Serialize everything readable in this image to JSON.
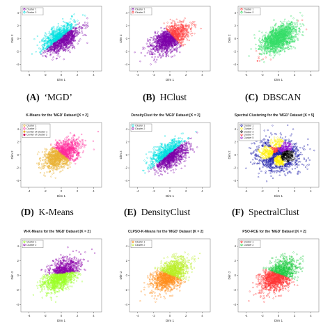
{
  "panels": [
    {
      "id": "A",
      "title": "",
      "caption_label": "(A)",
      "caption_text": "‘MGD’",
      "chart_data": {
        "type": "scatter",
        "xlabel": "Dim 1",
        "ylabel": "Dim 2",
        "xlim": [
          -5,
          5
        ],
        "ylim": [
          -5,
          5
        ],
        "xticks": [
          -4,
          -2,
          0,
          2,
          4
        ],
        "yticks": [
          -4,
          -2,
          0,
          2,
          4
        ],
        "legend_position": "top-left",
        "series": [
          {
            "name": "Cluster 1",
            "color": "#7b00a8"
          },
          {
            "name": "Cluster 2",
            "color": "#00e0e0"
          }
        ]
      }
    },
    {
      "id": "B",
      "title": "",
      "caption_label": "(B)",
      "caption_text": "HClust",
      "chart_data": {
        "type": "scatter",
        "xlabel": "Dim 1",
        "ylabel": "Dim 2",
        "xlim": [
          -5,
          5
        ],
        "ylim": [
          -5,
          5
        ],
        "xticks": [
          -4,
          -2,
          0,
          2,
          4
        ],
        "yticks": [
          -4,
          -2,
          0,
          2,
          4
        ],
        "legend_position": "top-left",
        "series": [
          {
            "name": "Cluster 1",
            "color": "#7b00a8"
          },
          {
            "name": "Cluster 2",
            "color": "#ff4040"
          }
        ]
      }
    },
    {
      "id": "C",
      "title": "",
      "caption_label": "(C)",
      "caption_text": "DBSCAN",
      "chart_data": {
        "type": "scatter",
        "xlabel": "Dim 1",
        "ylabel": "Dim 2",
        "xlim": [
          -5,
          5
        ],
        "ylim": [
          -5,
          5
        ],
        "xticks": [
          -4,
          -2,
          0,
          2,
          4
        ],
        "yticks": [
          -4,
          -2,
          0,
          2,
          4
        ],
        "legend_position": "top-left",
        "series": [
          {
            "name": "Cluster 1",
            "color": "#ff3a3a"
          },
          {
            "name": "Cluster 2",
            "color": "#33dd66"
          }
        ]
      }
    },
    {
      "id": "D",
      "title": "K-Means for the 'MGD' Dataset [K = 2]",
      "caption_label": "(D)",
      "caption_text": "K-Means",
      "chart_data": {
        "type": "scatter",
        "xlabel": "Dim 1",
        "ylabel": "Dim 2",
        "xlim": [
          -5,
          5
        ],
        "ylim": [
          -5,
          5
        ],
        "xticks": [
          -4,
          -2,
          0,
          2,
          4
        ],
        "yticks": [
          -4,
          -2,
          0,
          2,
          4
        ],
        "legend_position": "top-left",
        "series": [
          {
            "name": "Cluster 1",
            "color": "#e8b030"
          },
          {
            "name": "Cluster 2",
            "color": "#ff2a9a"
          },
          {
            "name": "Center of Cluster 1",
            "color": "#e8b030"
          },
          {
            "name": "Center of Cluster 2",
            "color": "#cc0055"
          }
        ]
      }
    },
    {
      "id": "E",
      "title": "DensityClust for the 'MGD' Dataset [K = 2]",
      "caption_label": "(E)",
      "caption_text": "DensityClust",
      "chart_data": {
        "type": "scatter",
        "xlabel": "Dim 1",
        "ylabel": "Dim 2",
        "xlim": [
          -5,
          5
        ],
        "ylim": [
          -5,
          5
        ],
        "xticks": [
          -4,
          -2,
          0,
          2,
          4
        ],
        "yticks": [
          -4,
          -2,
          0,
          2,
          4
        ],
        "legend_position": "top-left",
        "series": [
          {
            "name": "Cluster 1",
            "color": "#00e0e0"
          },
          {
            "name": "Cluster 2",
            "color": "#7b00a8"
          }
        ]
      }
    },
    {
      "id": "F",
      "title": "Spectral Clustering for the 'MGD' Dataset [K = 5]",
      "caption_label": "(F)",
      "caption_text": "SpectralClust",
      "chart_data": {
        "type": "scatter",
        "xlabel": "Dim 1",
        "ylabel": "Dim 2",
        "xlim": [
          -5,
          5
        ],
        "ylim": [
          -5,
          5
        ],
        "xticks": [
          -4,
          -2,
          0,
          2,
          4
        ],
        "yticks": [
          -4,
          -2,
          0,
          2,
          4
        ],
        "legend_position": "top-left",
        "series": [
          {
            "name": "Cluster 1",
            "color": "#1a1aa8"
          },
          {
            "name": "Cluster 2",
            "color": "#ffee00"
          },
          {
            "name": "Cluster 3",
            "color": "#000000"
          },
          {
            "name": "Cluster 4",
            "color": "#ff3333"
          },
          {
            "name": "Cluster 5",
            "color": "#8800cc"
          }
        ]
      }
    },
    {
      "id": "G",
      "title": "W-K-Means for the 'MGD' Dataset [K = 2]",
      "caption_label": "",
      "caption_text": "",
      "chart_data": {
        "type": "scatter",
        "xlabel": "Dim 1",
        "ylabel": "Dim 2",
        "xlim": [
          -5,
          5
        ],
        "ylim": [
          -5,
          5
        ],
        "xticks": [
          -4,
          -2,
          0,
          2,
          4
        ],
        "yticks": [
          -4,
          -2,
          0,
          2,
          4
        ],
        "legend_position": "top-left",
        "series": [
          {
            "name": "Cluster 1",
            "color": "#99ff22"
          },
          {
            "name": "Cluster 2",
            "color": "#8a00a8"
          }
        ]
      }
    },
    {
      "id": "H",
      "title": "CLPSO-K-Means for the 'MGD' Dataset [K = 2]",
      "caption_label": "",
      "caption_text": "",
      "chart_data": {
        "type": "scatter",
        "xlabel": "Dim 1",
        "ylabel": "Dim 2",
        "xlim": [
          -5,
          5
        ],
        "ylim": [
          -5,
          5
        ],
        "xticks": [
          -4,
          -2,
          0,
          2,
          4
        ],
        "yticks": [
          -4,
          -2,
          0,
          2,
          4
        ],
        "legend_position": "top-left",
        "series": [
          {
            "name": "Cluster 1",
            "color": "#ff8c1a"
          },
          {
            "name": "Cluster 2",
            "color": "#b8ee22"
          }
        ]
      }
    },
    {
      "id": "I",
      "title": "PSO-RCE for the 'MGD' Dataset [K = 2]",
      "caption_label": "",
      "caption_text": "",
      "chart_data": {
        "type": "scatter",
        "xlabel": "Dim 1",
        "ylabel": "Dim 2",
        "xlim": [
          -5,
          5
        ],
        "ylim": [
          -5,
          5
        ],
        "xticks": [
          -4,
          -2,
          0,
          2,
          4
        ],
        "yticks": [
          -4,
          -2,
          0,
          2,
          4
        ],
        "legend_position": "top-left",
        "series": [
          {
            "name": "Cluster 1",
            "color": "#ff3333"
          },
          {
            "name": "Cluster 2",
            "color": "#22cc44"
          }
        ]
      }
    }
  ]
}
